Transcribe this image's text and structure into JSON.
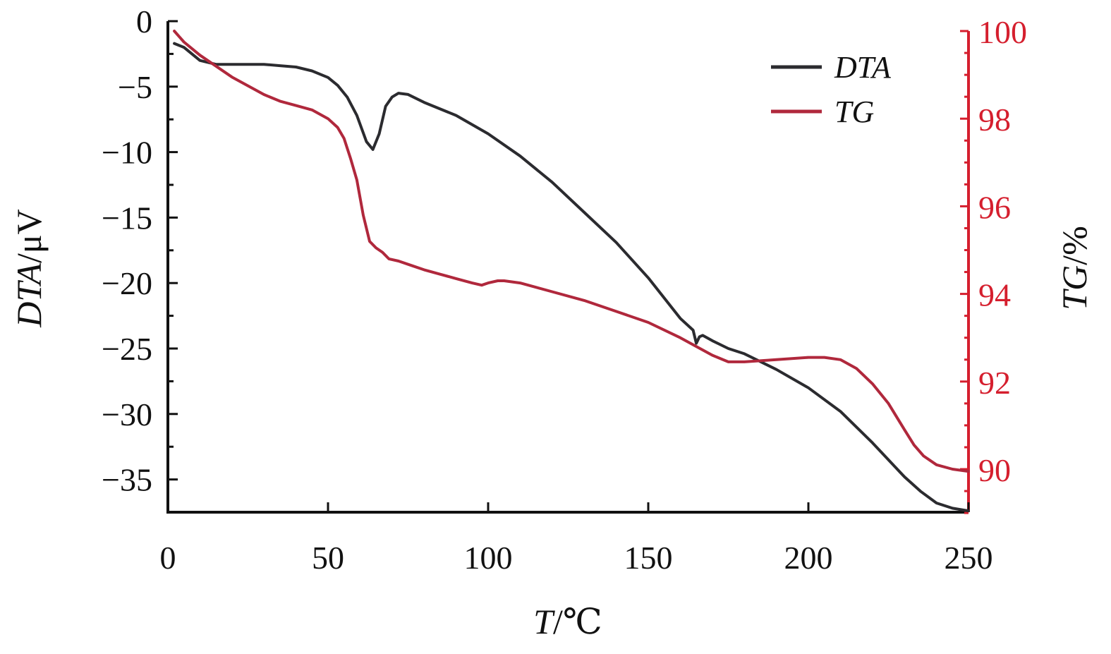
{
  "chart_data": {
    "type": "line",
    "xlabel": {
      "italic": "T",
      "rest": "/℃"
    },
    "ylabel_left": {
      "italic": "DTA",
      "rest": "/μV"
    },
    "ylabel_right": {
      "italic": "TG",
      "rest": "/%"
    },
    "xlim": [
      0,
      250
    ],
    "ylim_left": [
      -37.5,
      0
    ],
    "ylim_right": [
      89,
      100
    ],
    "x_ticks": [
      "0",
      "50",
      "100",
      "150",
      "200",
      "250"
    ],
    "y_left_ticks": [
      "0",
      "−5",
      "−10",
      "−15",
      "−20",
      "−25",
      "−30",
      "−35"
    ],
    "y_right_ticks": [
      "100",
      "98",
      "96",
      "94",
      "92",
      "90"
    ],
    "legend_position": "top-right",
    "grid": false,
    "colors": {
      "dta": "#2b2b2f",
      "tg": "#b0283c",
      "right_axis": "#d51f2e",
      "left_axis": "#111111"
    },
    "series": [
      {
        "name": "DTA",
        "axis": "left",
        "x": [
          2,
          5,
          10,
          15,
          20,
          25,
          30,
          35,
          40,
          45,
          50,
          53,
          56,
          59,
          62,
          64,
          66,
          68,
          70,
          72,
          75,
          80,
          90,
          100,
          110,
          120,
          130,
          140,
          150,
          160,
          164,
          165,
          166,
          167,
          170,
          175,
          180,
          190,
          200,
          210,
          220,
          225,
          230,
          235,
          240,
          245,
          250
        ],
        "y": [
          -1.7,
          -2.0,
          -3.0,
          -3.3,
          -3.3,
          -3.3,
          -3.3,
          -3.4,
          -3.5,
          -3.8,
          -4.3,
          -4.9,
          -5.8,
          -7.2,
          -9.2,
          -9.8,
          -8.6,
          -6.5,
          -5.8,
          -5.5,
          -5.6,
          -6.2,
          -7.2,
          -8.6,
          -10.3,
          -12.3,
          -14.6,
          -16.9,
          -19.6,
          -22.7,
          -23.6,
          -24.6,
          -24.1,
          -24.0,
          -24.4,
          -25.0,
          -25.4,
          -26.6,
          -28.0,
          -29.8,
          -32.2,
          -33.5,
          -34.8,
          -35.9,
          -36.8,
          -37.2,
          -37.4
        ]
      },
      {
        "name": "TG",
        "axis": "right",
        "x": [
          2,
          5,
          10,
          15,
          20,
          25,
          30,
          35,
          40,
          45,
          50,
          53,
          55,
          57,
          59,
          61,
          63,
          65,
          67,
          69,
          72,
          76,
          80,
          85,
          90,
          95,
          98,
          100,
          103,
          105,
          110,
          120,
          130,
          140,
          150,
          160,
          170,
          175,
          180,
          190,
          200,
          205,
          210,
          215,
          220,
          225,
          230,
          233,
          236,
          240,
          245,
          250
        ],
        "y": [
          100.0,
          99.75,
          99.45,
          99.2,
          98.95,
          98.75,
          98.55,
          98.4,
          98.3,
          98.2,
          98.0,
          97.8,
          97.55,
          97.1,
          96.6,
          95.8,
          95.2,
          95.05,
          94.95,
          94.8,
          94.75,
          94.65,
          94.55,
          94.45,
          94.35,
          94.25,
          94.2,
          94.25,
          94.3,
          94.3,
          94.25,
          94.05,
          93.85,
          93.6,
          93.35,
          93.0,
          92.6,
          92.45,
          92.45,
          92.5,
          92.55,
          92.55,
          92.5,
          92.3,
          91.95,
          91.5,
          90.9,
          90.55,
          90.3,
          90.1,
          90.0,
          89.95
        ]
      }
    ]
  }
}
